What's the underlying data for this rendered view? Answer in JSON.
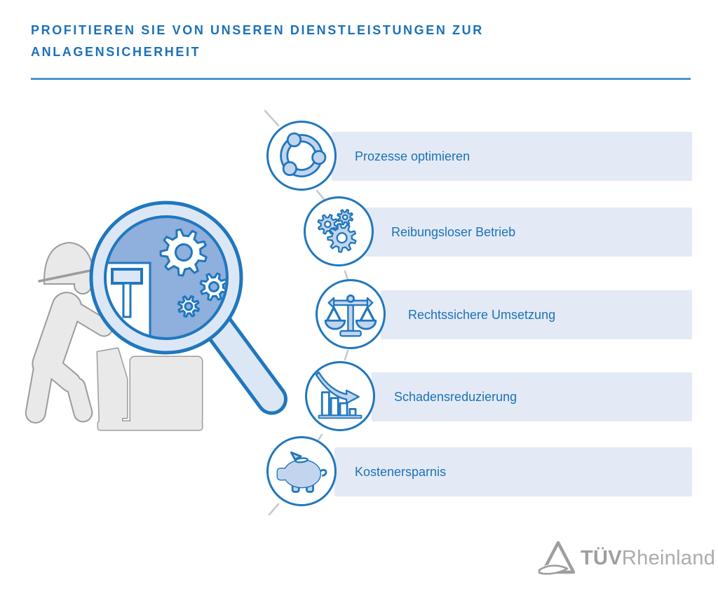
{
  "header": {
    "title_line1": "PROFITIEREN SIE VON UNSEREN DIENSTLEISTUNGEN ZUR",
    "title_line2": "ANLAGENSICHERHEIT"
  },
  "benefits": [
    {
      "label": "Prozesse optimieren",
      "icon": "sync-arrows-icon"
    },
    {
      "label": "Reibungsloser Betrieb",
      "icon": "gears-icon"
    },
    {
      "label": "Rechtssichere Umsetzung",
      "icon": "scales-icon"
    },
    {
      "label": "Schadensreduzierung",
      "icon": "declining-chart-icon"
    },
    {
      "label": "Kostenersparnis",
      "icon": "piggy-bank-icon"
    }
  ],
  "illustration_icons": [
    "worker-figure-icon",
    "machine-icon",
    "magnifying-glass-icon"
  ],
  "logo": {
    "text_bold": "TÜV",
    "text_regular": "Rheinland",
    "icon": "tuv-triangle-logo-icon"
  },
  "colors": {
    "brand_blue": "#1d71b8",
    "stroke_blue": "#2077be",
    "underline_blue": "#4d94ce",
    "band_bg": "#e3eaf5",
    "icon_fill": "#c3d5ee",
    "lens_fill": "#8fafdc",
    "light_fill": "#dce7f6",
    "figure_gray": "#e9e9e9",
    "figure_stroke": "#9c9c9c",
    "logo_gray": "#9e9e9e",
    "connector_gray": "#c9c9c9"
  }
}
